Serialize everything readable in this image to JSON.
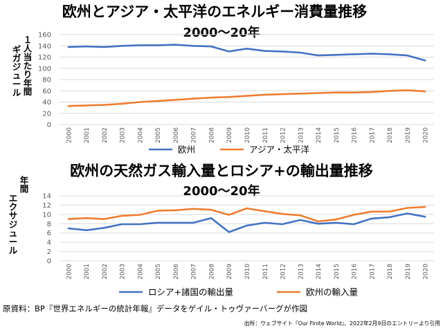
{
  "chart_data": [
    {
      "type": "line",
      "title": "欧州とアジア・太平洋のエネルギー消費量推移",
      "subtitle": "2000〜20年",
      "ylabel": "１人当たり年間ギガジュール",
      "xlabel": "",
      "ylim": [
        0,
        160
      ],
      "yticks": [
        0,
        20,
        40,
        60,
        80,
        100,
        120,
        140,
        160
      ],
      "grid": true,
      "legend": "bottom-center",
      "x": [
        "2000",
        "2001",
        "2002",
        "2003",
        "2004",
        "2005",
        "2006",
        "2007",
        "2008",
        "2009",
        "2010",
        "2011",
        "2012",
        "2013",
        "2014",
        "2015",
        "2016",
        "2017",
        "2018",
        "2019",
        "2020"
      ],
      "series": [
        {
          "name": "欧州",
          "color": "#4472C4",
          "values": [
            138,
            139,
            138,
            140,
            141,
            141,
            142,
            140,
            139,
            130,
            135,
            131,
            130,
            128,
            123,
            124,
            125,
            126,
            125,
            123,
            114
          ]
        },
        {
          "name": "アジア・太平洋",
          "color": "#ED7D31",
          "values": [
            33,
            34,
            35,
            37,
            40,
            42,
            44,
            46,
            48,
            49,
            51,
            53,
            54,
            55,
            56,
            57,
            57,
            58,
            60,
            61,
            59
          ]
        }
      ]
    },
    {
      "type": "line",
      "title": "欧州の天然ガス輸入量とロシア+の輸出量推移",
      "subtitle": "2000〜20年",
      "ylabel": "年間エクサジュール",
      "xlabel": "",
      "ylim": [
        0,
        14
      ],
      "yticks": [
        0,
        2,
        4,
        6,
        8,
        10,
        12,
        14
      ],
      "grid": true,
      "legend": "bottom-center",
      "x": [
        "2000",
        "2001",
        "2002",
        "2003",
        "2004",
        "2005",
        "2006",
        "2007",
        "2008",
        "2009",
        "2010",
        "2011",
        "2012",
        "2013",
        "2014",
        "2015",
        "2016",
        "2017",
        "2018",
        "2019",
        "2020"
      ],
      "series": [
        {
          "name": "ロシア+諸国の輸出量",
          "color": "#4472C4",
          "values": [
            7.0,
            6.6,
            7.1,
            7.9,
            7.9,
            8.2,
            8.2,
            8.2,
            9.2,
            6.2,
            7.6,
            8.2,
            7.9,
            8.8,
            8.0,
            8.2,
            7.9,
            9.1,
            9.4,
            10.2,
            9.5
          ]
        },
        {
          "name": "欧州の輸入量",
          "color": "#ED7D31",
          "values": [
            9.0,
            9.2,
            9.0,
            9.7,
            9.9,
            10.8,
            10.9,
            11.2,
            11.0,
            9.9,
            11.3,
            10.7,
            10.1,
            9.8,
            8.5,
            8.9,
            9.9,
            10.6,
            10.6,
            11.4,
            11.6
          ]
        }
      ]
    }
  ],
  "footer": {
    "source": "原資料：BP『世界エネルギーの統計年報』データをゲイル・トゥヴァーバーグが作図",
    "citation": "出所：ウェブサイト『Our Finite World』、2022年2月9日のエントリーより引用"
  },
  "colors": {
    "axis_text": "#595959",
    "grid": "#D9D9D9"
  }
}
